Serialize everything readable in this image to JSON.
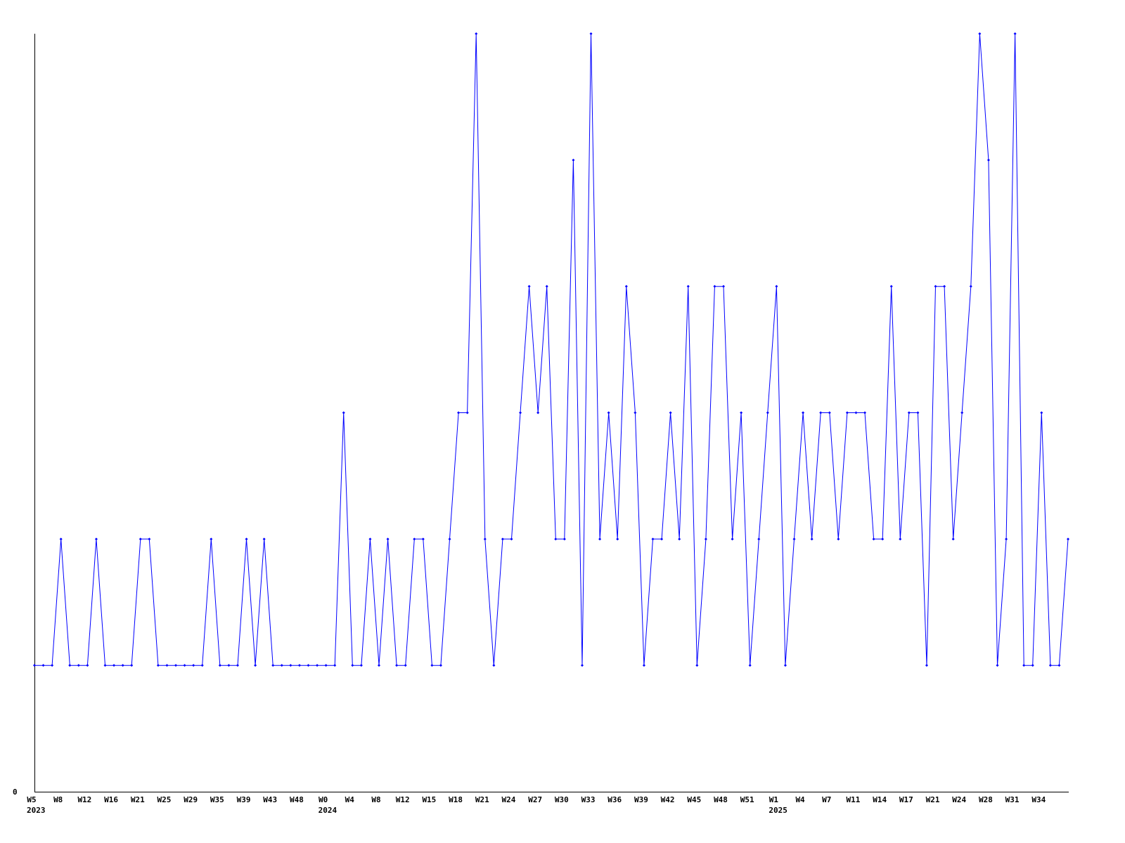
{
  "chart_data": {
    "type": "line",
    "title": "",
    "xlabel": "",
    "ylabel": "",
    "ylim": [
      0,
      6
    ],
    "y_tick_labels": [
      "0"
    ],
    "grid": false,
    "line_color": "#0000ff",
    "axis_color": "#000000",
    "x_tick_labels": [
      "W5",
      "W8",
      "W12",
      "W16",
      "W21",
      "W25",
      "W29",
      "W35",
      "W39",
      "W43",
      "W48",
      "W0",
      "W4",
      "W8",
      "W12",
      "W15",
      "W18",
      "W21",
      "W24",
      "W27",
      "W30",
      "W33",
      "W36",
      "W39",
      "W42",
      "W45",
      "W48",
      "W51",
      "W1",
      "W4",
      "W7",
      "W11",
      "W14",
      "W17",
      "W21",
      "W24",
      "W28",
      "W31",
      "W34"
    ],
    "year_labels": [
      {
        "label": "2023",
        "tick": 0
      },
      {
        "label": "2024",
        "tick": 11
      },
      {
        "label": "2025",
        "tick": 28
      }
    ],
    "values": [
      1,
      1,
      1,
      2,
      1,
      1,
      1,
      2,
      1,
      1,
      1,
      1,
      2,
      2,
      1,
      1,
      1,
      1,
      1,
      1,
      2,
      1,
      1,
      1,
      2,
      1,
      2,
      1,
      1,
      1,
      1,
      1,
      1,
      1,
      1,
      3,
      1,
      1,
      2,
      1,
      2,
      1,
      1,
      2,
      2,
      1,
      1,
      2,
      3,
      3,
      6,
      2,
      1,
      2,
      2,
      3,
      4,
      3,
      4,
      2,
      2,
      5,
      1,
      6,
      2,
      3,
      2,
      4,
      3,
      1,
      2,
      2,
      3,
      2,
      4,
      1,
      2,
      4,
      4,
      2,
      3,
      1,
      2,
      3,
      4,
      1,
      2,
      3,
      2,
      3,
      3,
      2,
      3,
      3,
      3,
      2,
      2,
      4,
      2,
      3,
      3,
      1,
      4,
      4,
      2,
      3,
      4,
      6,
      5,
      1,
      2,
      6,
      1,
      1,
      3,
      1,
      1,
      2
    ]
  }
}
